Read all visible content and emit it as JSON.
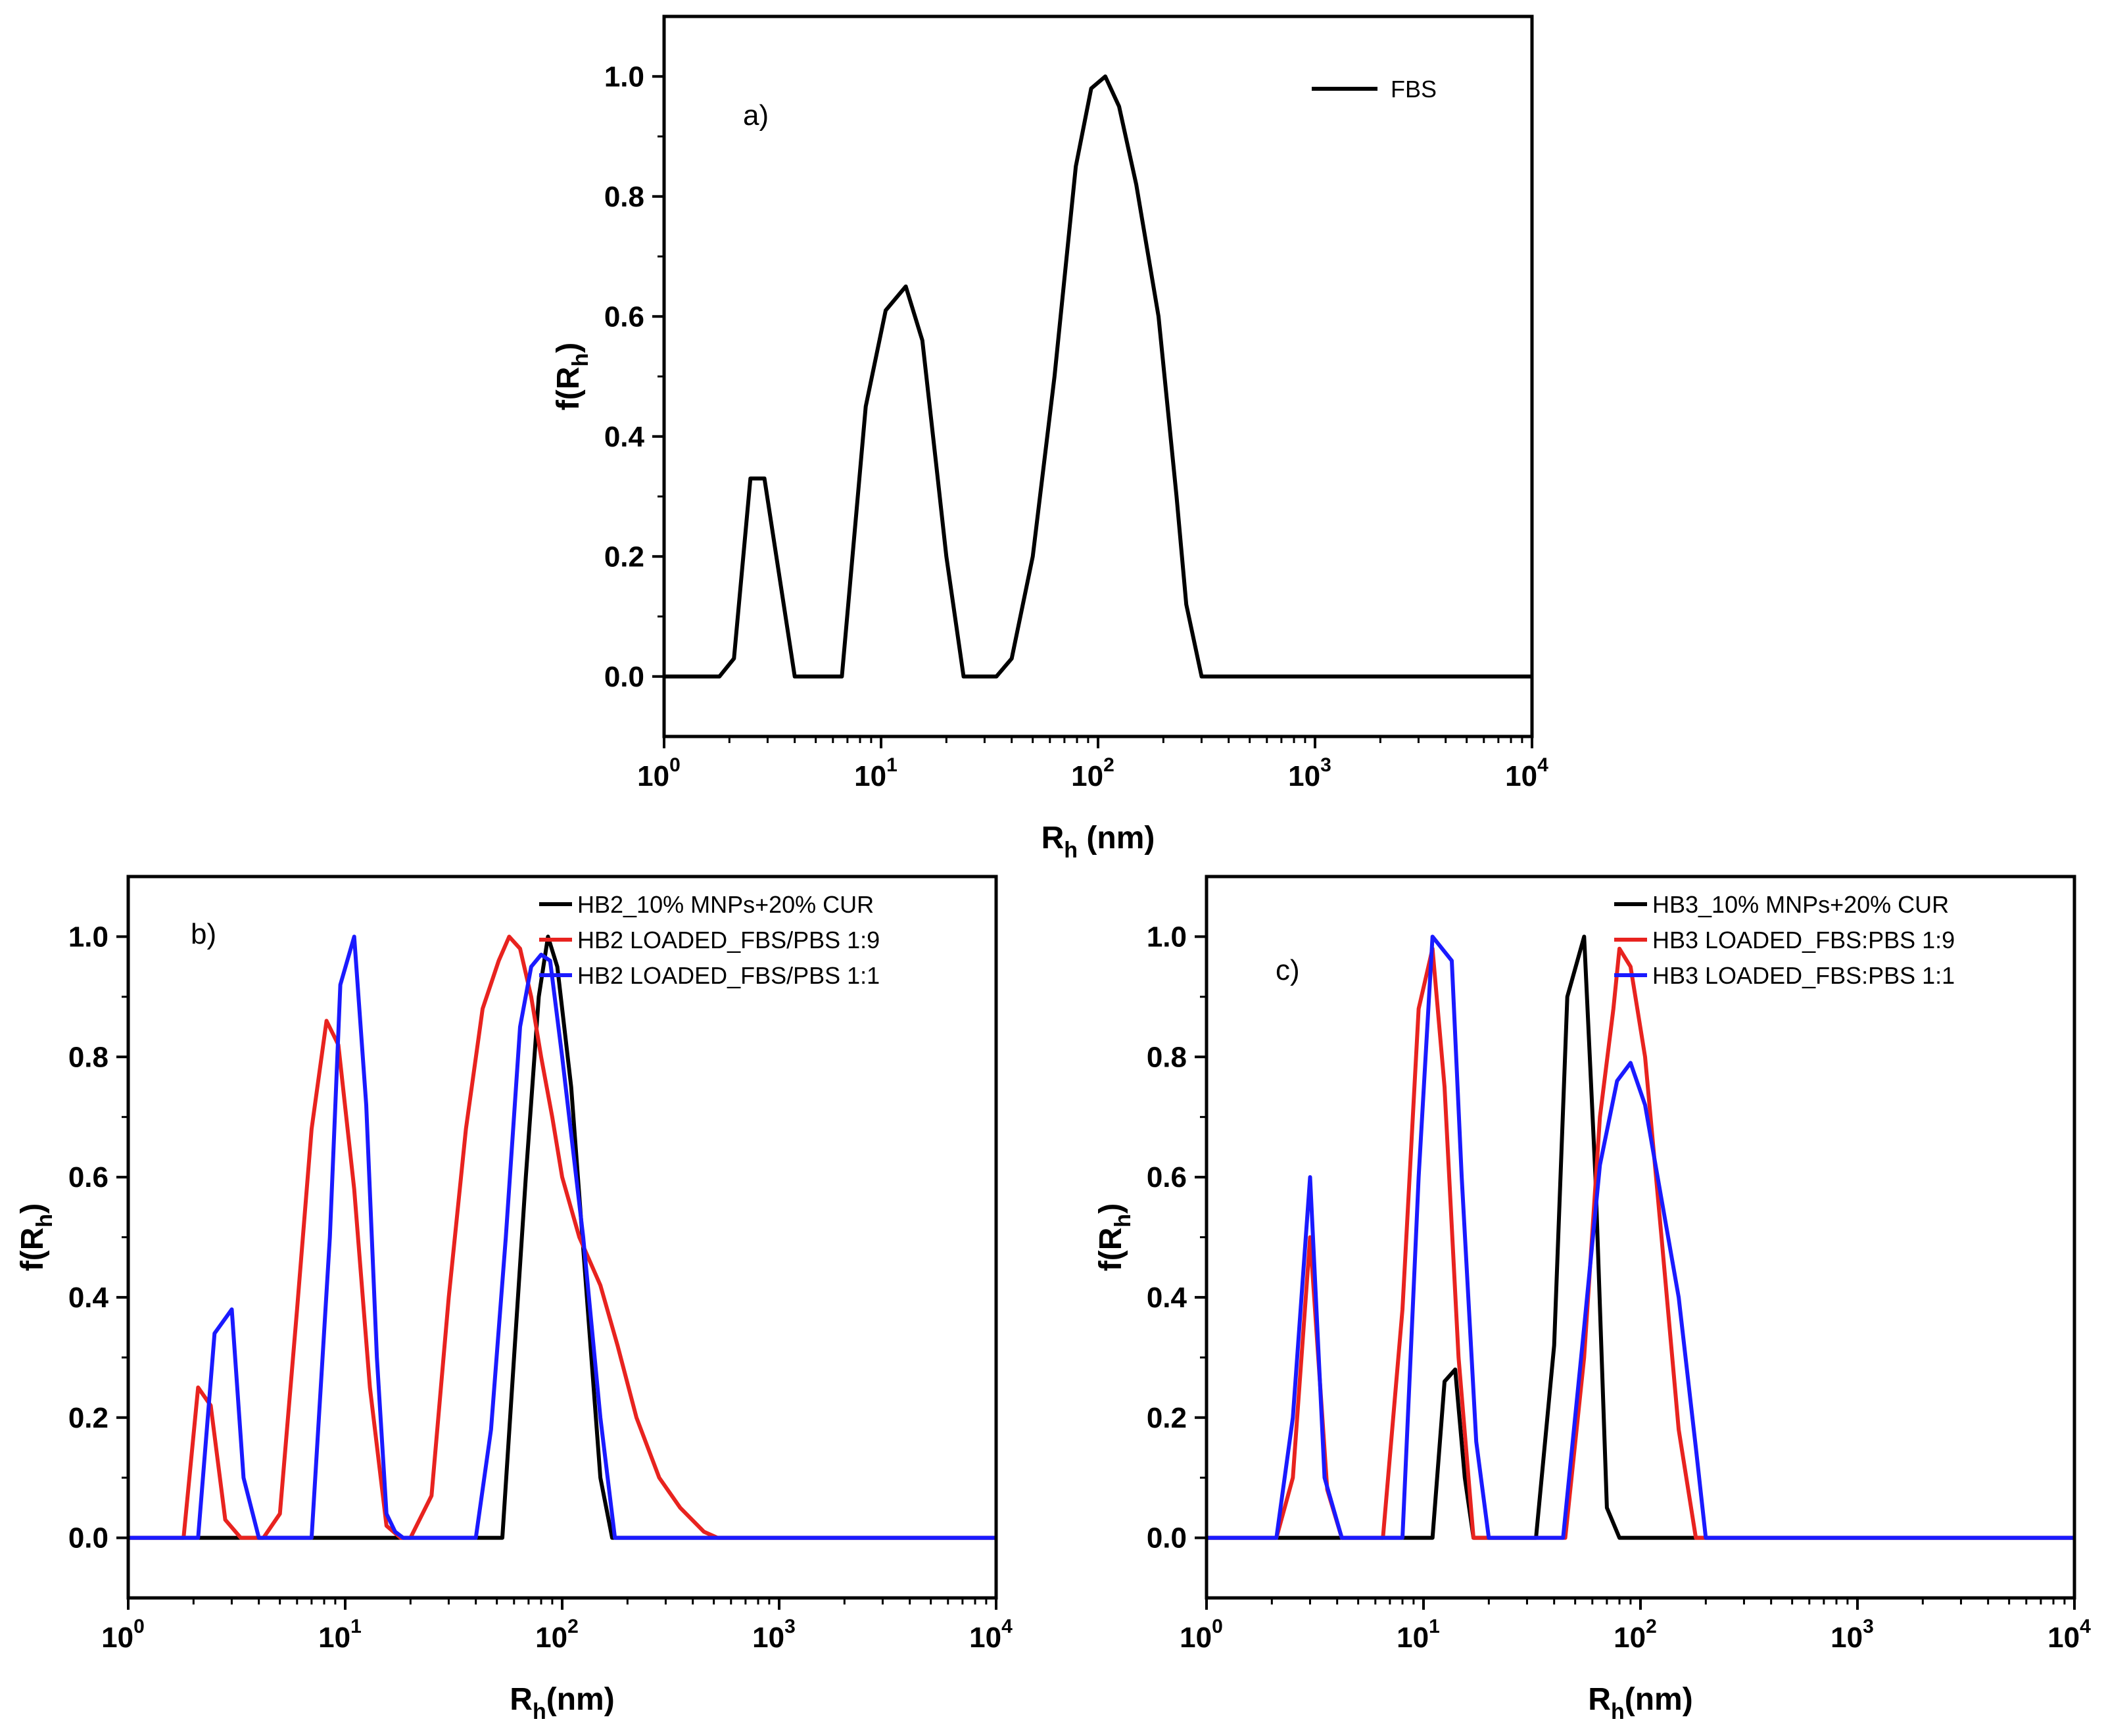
{
  "colors": {
    "black": "#000000",
    "red": "#e8231f",
    "blue": "#1a1aff"
  },
  "chart_data": [
    {
      "type": "line",
      "panel_label": "a)",
      "xscale": "log",
      "xlim": [
        1,
        10000
      ],
      "ylim": [
        -0.1,
        1.1
      ],
      "xticks": [
        {
          "value": 1,
          "base": "10",
          "exp": "0"
        },
        {
          "value": 10,
          "base": "10",
          "exp": "1"
        },
        {
          "value": 100,
          "base": "10",
          "exp": "2"
        },
        {
          "value": 1000,
          "base": "10",
          "exp": "3"
        },
        {
          "value": 10000,
          "base": "10",
          "exp": "4"
        }
      ],
      "yticks": [
        "0.0",
        "0.2",
        "0.4",
        "0.6",
        "0.8",
        "1.0"
      ],
      "xlabel": {
        "main": "R",
        "sub": "h",
        "tail": " (nm)"
      },
      "ylabel": {
        "main": "f(R",
        "sub": "h",
        "tail": ")"
      },
      "legend_position": "top-right",
      "series": [
        {
          "name": "FBS",
          "color": "#000000",
          "x": [
            1,
            1.8,
            2.1,
            2.5,
            2.9,
            4.0,
            6.6,
            8.5,
            10.5,
            13,
            15.5,
            18,
            20,
            24,
            34,
            40,
            50,
            63,
            79,
            93,
            108,
            125,
            150,
            190,
            230,
            255,
            300,
            10000
          ],
          "y": [
            0,
            0,
            0.03,
            0.33,
            0.33,
            0,
            0,
            0.45,
            0.61,
            0.65,
            0.56,
            0.35,
            0.2,
            0,
            0,
            0.03,
            0.2,
            0.5,
            0.85,
            0.98,
            1.0,
            0.95,
            0.82,
            0.6,
            0.3,
            0.12,
            0,
            0
          ]
        }
      ]
    },
    {
      "type": "line",
      "panel_label": "b)",
      "xscale": "log",
      "xlim": [
        1,
        10000
      ],
      "ylim": [
        -0.1,
        1.1
      ],
      "xticks": [
        {
          "value": 1,
          "base": "10",
          "exp": "0"
        },
        {
          "value": 10,
          "base": "10",
          "exp": "1"
        },
        {
          "value": 100,
          "base": "10",
          "exp": "2"
        },
        {
          "value": 1000,
          "base": "10",
          "exp": "3"
        },
        {
          "value": 10000,
          "base": "10",
          "exp": "4"
        }
      ],
      "yticks": [
        "0.0",
        "0.2",
        "0.4",
        "0.6",
        "0.8",
        "1.0"
      ],
      "xlabel": {
        "main": "R",
        "sub": "h",
        "tail": "(nm)"
      },
      "ylabel": {
        "main": "f(R",
        "sub": "h",
        "tail": ")"
      },
      "legend_position": "top-right",
      "series": [
        {
          "name": "HB2_10% MNPs+20% CUR",
          "color": "#000000",
          "x": [
            1,
            53,
            60,
            68,
            78,
            86,
            95,
            110,
            130,
            150,
            170,
            10000
          ],
          "y": [
            0,
            0,
            0.3,
            0.6,
            0.9,
            1.0,
            0.95,
            0.75,
            0.4,
            0.1,
            0,
            0
          ]
        },
        {
          "name": "HB2 LOADED_FBS/PBS 1:9",
          "color": "#e8231f",
          "x": [
            1,
            1.8,
            2.1,
            2.4,
            2.8,
            3.3,
            4.2,
            5.0,
            6.0,
            7.0,
            8.2,
            9.3,
            11,
            13,
            15.5,
            18,
            20,
            25,
            30,
            36,
            43,
            51,
            57,
            64,
            72,
            80,
            90,
            100,
            120,
            150,
            180,
            220,
            280,
            350,
            450,
            520,
            10000
          ],
          "y": [
            0,
            0,
            0.25,
            0.22,
            0.03,
            0,
            0,
            0.04,
            0.38,
            0.68,
            0.86,
            0.82,
            0.58,
            0.25,
            0.02,
            0,
            0,
            0.07,
            0.4,
            0.68,
            0.88,
            0.96,
            1.0,
            0.98,
            0.9,
            0.8,
            0.7,
            0.6,
            0.5,
            0.42,
            0.32,
            0.2,
            0.1,
            0.05,
            0.01,
            0,
            0
          ]
        },
        {
          "name": "HB2 LOADED_FBS/PBS 1:1",
          "color": "#1a1aff",
          "x": [
            1,
            2.1,
            2.5,
            3.0,
            3.4,
            4.0,
            7.0,
            8.5,
            9.5,
            11,
            12.5,
            14,
            15.5,
            17,
            18.5,
            40,
            47,
            55,
            64,
            72,
            80,
            88,
            100,
            125,
            150,
            175,
            10000
          ],
          "y": [
            0,
            0,
            0.34,
            0.38,
            0.1,
            0,
            0,
            0.5,
            0.92,
            1.0,
            0.72,
            0.3,
            0.04,
            0.01,
            0,
            0,
            0.18,
            0.5,
            0.85,
            0.95,
            0.97,
            0.96,
            0.8,
            0.5,
            0.2,
            0,
            0
          ]
        }
      ]
    },
    {
      "type": "line",
      "panel_label": "c)",
      "xscale": "log",
      "xlim": [
        1,
        10000
      ],
      "ylim": [
        -0.1,
        1.1
      ],
      "xticks": [
        {
          "value": 1,
          "base": "10",
          "exp": "0"
        },
        {
          "value": 10,
          "base": "10",
          "exp": "1"
        },
        {
          "value": 100,
          "base": "10",
          "exp": "2"
        },
        {
          "value": 1000,
          "base": "10",
          "exp": "3"
        },
        {
          "value": 10000,
          "base": "10",
          "exp": "4"
        }
      ],
      "yticks": [
        "0.0",
        "0.2",
        "0.4",
        "0.6",
        "0.8",
        "1.0"
      ],
      "xlabel": {
        "main": "R",
        "sub": "h",
        "tail": "(nm)"
      },
      "ylabel": {
        "main": "f(R",
        "sub": "h",
        "tail": ")"
      },
      "legend_position": "top-right",
      "series": [
        {
          "name": "HB3_10% MNPs+20% CUR",
          "color": "#000000",
          "x": [
            1,
            11,
            12.5,
            14,
            15.5,
            17,
            33,
            40,
            46,
            55,
            62,
            70,
            80,
            10000
          ],
          "y": [
            0,
            0,
            0.26,
            0.28,
            0.1,
            0,
            0,
            0.32,
            0.9,
            1.0,
            0.6,
            0.05,
            0,
            0
          ]
        },
        {
          "name": "HB3 LOADED_FBS:PBS 1:9",
          "color": "#e8231f",
          "x": [
            1,
            2.1,
            2.5,
            3.0,
            3.6,
            4.2,
            6.5,
            8.0,
            9.5,
            11.0,
            12.5,
            14.5,
            17,
            45,
            55,
            65,
            75,
            80,
            90,
            105,
            125,
            150,
            180,
            10000
          ],
          "y": [
            0,
            0,
            0.1,
            0.5,
            0.08,
            0,
            0,
            0.38,
            0.88,
            0.98,
            0.75,
            0.3,
            0,
            0,
            0.3,
            0.7,
            0.88,
            0.98,
            0.95,
            0.8,
            0.5,
            0.18,
            0,
            0
          ]
        },
        {
          "name": "HB3 LOADED_FBS:PBS 1:1",
          "color": "#1a1aff",
          "x": [
            1,
            2.1,
            2.5,
            3.0,
            3.5,
            4.2,
            8.0,
            9.5,
            11.0,
            13.5,
            15,
            17.5,
            20,
            44,
            55,
            65,
            78,
            90,
            105,
            120,
            150,
            180,
            200,
            10000
          ],
          "y": [
            0,
            0,
            0.2,
            0.6,
            0.1,
            0,
            0,
            0.6,
            1.0,
            0.96,
            0.6,
            0.16,
            0,
            0,
            0.35,
            0.62,
            0.76,
            0.79,
            0.72,
            0.6,
            0.4,
            0.15,
            0,
            0
          ]
        }
      ]
    }
  ]
}
